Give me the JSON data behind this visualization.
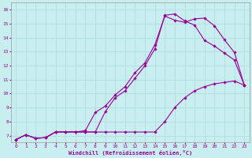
{
  "xlabel": "Windchill (Refroidissement éolien,°C)",
  "bg_color": "#c8eef0",
  "line_color": "#990099",
  "grid_color": "#b0dde0",
  "xlim": [
    -0.5,
    23.5
  ],
  "ylim": [
    6.5,
    16.5
  ],
  "xticks": [
    0,
    1,
    2,
    3,
    4,
    5,
    6,
    7,
    8,
    9,
    10,
    11,
    12,
    13,
    14,
    15,
    16,
    17,
    18,
    19,
    20,
    21,
    22,
    23
  ],
  "yticks": [
    7,
    8,
    9,
    10,
    11,
    12,
    13,
    14,
    15,
    16
  ],
  "line1_x": [
    0,
    1,
    2,
    3,
    4,
    5,
    6,
    7,
    8,
    9,
    10,
    11,
    12,
    13,
    14,
    15,
    16,
    17,
    18,
    19,
    20,
    21,
    22,
    23
  ],
  "line1_y": [
    6.7,
    7.05,
    6.8,
    6.85,
    7.25,
    7.25,
    7.25,
    7.25,
    7.25,
    8.7,
    9.7,
    10.2,
    11.1,
    12.0,
    13.2,
    15.6,
    15.7,
    15.2,
    14.9,
    13.8,
    13.4,
    12.9,
    12.4,
    10.6
  ],
  "line2_x": [
    0,
    1,
    2,
    3,
    4,
    5,
    6,
    7,
    8,
    9,
    10,
    11,
    12,
    13,
    14,
    15,
    16,
    17,
    18,
    19,
    20,
    21,
    22,
    23
  ],
  "line2_y": [
    6.7,
    7.05,
    6.8,
    6.85,
    7.25,
    7.25,
    7.25,
    7.35,
    8.65,
    9.1,
    9.9,
    10.5,
    11.5,
    12.2,
    13.5,
    15.55,
    15.25,
    15.1,
    15.35,
    15.4,
    14.85,
    13.85,
    12.95,
    10.6
  ],
  "line3_x": [
    0,
    1,
    2,
    3,
    4,
    5,
    6,
    7,
    8,
    9,
    10,
    11,
    12,
    13,
    14,
    15,
    16,
    17,
    18,
    19,
    20,
    21,
    22,
    23
  ],
  "line3_y": [
    6.7,
    7.05,
    6.8,
    6.85,
    7.25,
    7.25,
    7.25,
    7.25,
    7.25,
    7.25,
    7.25,
    7.25,
    7.25,
    7.25,
    7.25,
    8.0,
    9.0,
    9.7,
    10.2,
    10.5,
    10.7,
    10.8,
    10.9,
    10.6
  ]
}
